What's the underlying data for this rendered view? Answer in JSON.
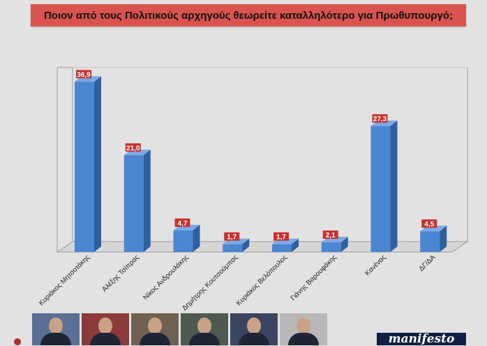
{
  "title": "Ποιον από τους Πολιτικούς αρχηγούς θεωρείτε καταλληλότερο για Πρωθυπουργό;",
  "colors": {
    "bar": "#4a86d1",
    "bar_side": "#2e5f9f",
    "bar_top": "#7aa9e4",
    "label_bg": "#c9302c",
    "title_bg": "#d9534f"
  },
  "chart_data": {
    "type": "bar",
    "title": "Ποιον από τους Πολιτικούς αρχηγούς θεωρείτε καταλληλότερο για Πρωθυπουργό;",
    "categories": [
      "Κυριάκος Μητσοτάκης",
      "Αλέξης Τσίπρας",
      "Νίκος Ανδρουλάκης",
      "Δημήτρης Κουτσούμπας",
      "Κυριάκος Βελόπουλος",
      "Γιάνης Βαρουφάκης",
      "Κανένας",
      "ΔΓ/ΔΑ"
    ],
    "values": [
      36.9,
      21.0,
      4.7,
      1.7,
      1.7,
      2.1,
      27.3,
      4.5
    ],
    "value_labels": [
      "36,9",
      "21,0",
      "4,7",
      "1,7",
      "1,7",
      "2,1",
      "27,3",
      "4,5"
    ],
    "ylim": [
      0,
      40
    ],
    "grid": false,
    "legend": "none"
  },
  "footer": {
    "logo_text": "manifesto"
  }
}
